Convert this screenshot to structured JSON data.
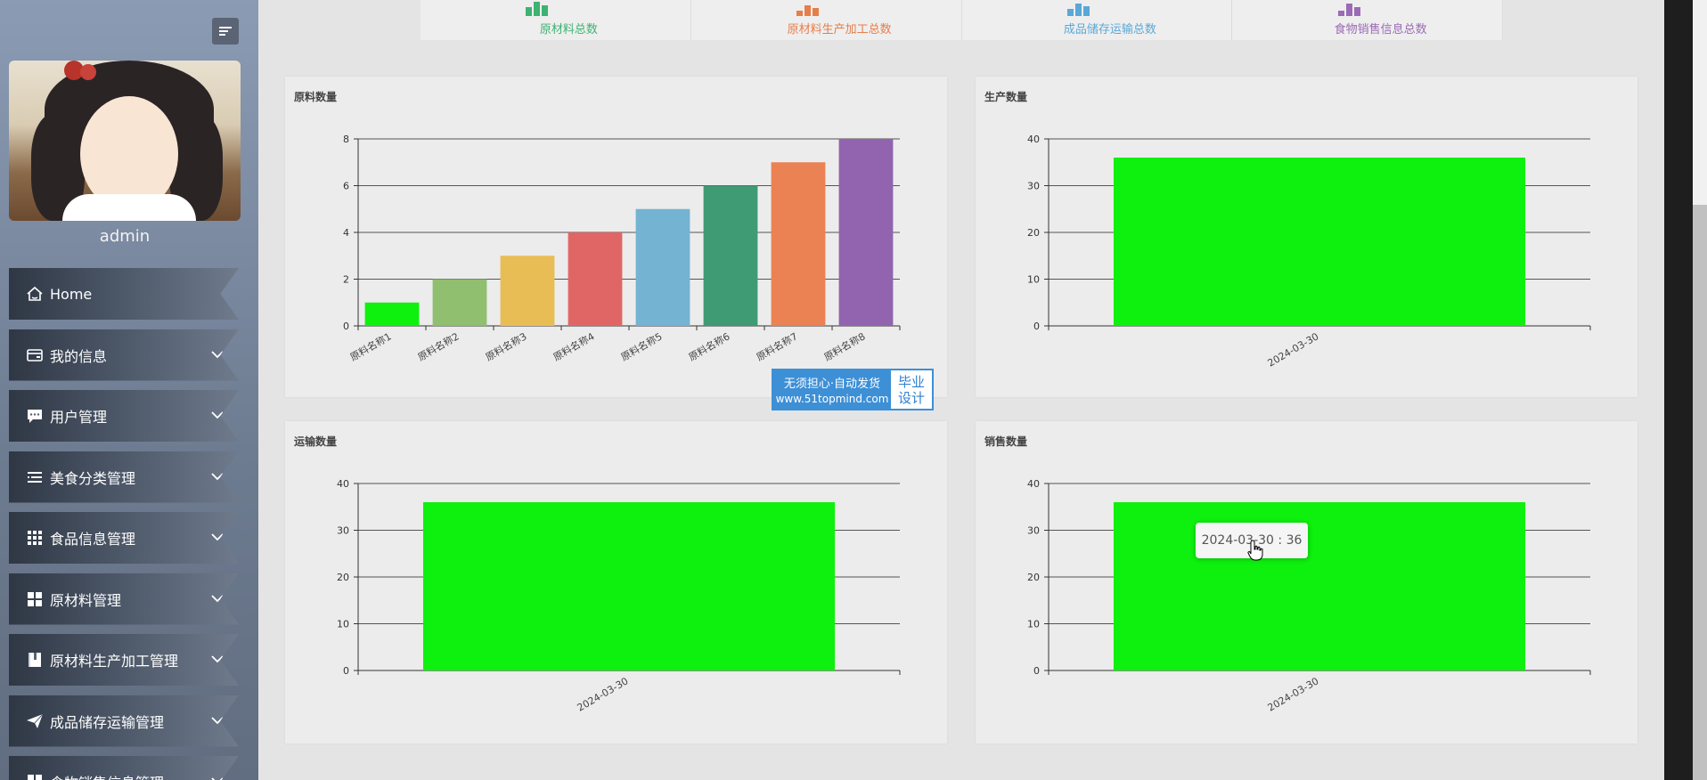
{
  "sidebar": {
    "username": "admin",
    "items": [
      {
        "label": "Home",
        "icon": "home-icon",
        "has_submenu": false
      },
      {
        "label": "我的信息",
        "icon": "card-icon",
        "has_submenu": true
      },
      {
        "label": "用户管理",
        "icon": "chat-icon",
        "has_submenu": true
      },
      {
        "label": "美食分类管理",
        "icon": "list-icon",
        "has_submenu": true
      },
      {
        "label": "食品信息管理",
        "icon": "grid-icon",
        "has_submenu": true
      },
      {
        "label": "原材料管理",
        "icon": "tiles-icon",
        "has_submenu": true
      },
      {
        "label": "原材料生产加工管理",
        "icon": "book-icon",
        "has_submenu": true
      },
      {
        "label": "成品储存运输管理",
        "icon": "send-icon",
        "has_submenu": true
      },
      {
        "label": "食物销售信息管理",
        "icon": "tiles-icon",
        "has_submenu": true
      }
    ]
  },
  "stats": [
    {
      "label": "原材料总数",
      "color": "#3cb371"
    },
    {
      "label": "原材料生产加工总数",
      "color": "#e67e4a"
    },
    {
      "label": "成品储存运输总数",
      "color": "#5aa8d6"
    },
    {
      "label": "食物销售信息总数",
      "color": "#9b6bb5"
    }
  ],
  "watermark": {
    "line1": "无须担心·自动发货",
    "line2": "www.51topmind.com",
    "right1": "毕业",
    "right2": "设计"
  },
  "tooltip": {
    "text": "2024-03-30 : 36"
  },
  "chart_data": [
    {
      "type": "bar",
      "title": "原料数量",
      "categories": [
        "原料名称1",
        "原料名称2",
        "原料名称3",
        "原料名称4",
        "原料名称5",
        "原料名称6",
        "原料名称7",
        "原料名称8"
      ],
      "values": [
        1,
        2,
        3,
        4,
        5,
        6,
        7,
        8
      ],
      "colors": [
        "#0ef00e",
        "#8fbf6f",
        "#e8bd55",
        "#e06666",
        "#74b3d1",
        "#3e9b74",
        "#eb8253",
        "#9263ae"
      ],
      "yticks": [
        0,
        2,
        4,
        6,
        8
      ],
      "ylim": [
        0,
        8
      ]
    },
    {
      "type": "bar",
      "title": "生产数量",
      "categories": [
        "2024-03-30"
      ],
      "values": [
        36
      ],
      "colors": [
        "#0ef00e"
      ],
      "yticks": [
        0,
        10,
        20,
        30,
        40
      ],
      "ylim": [
        0,
        40
      ]
    },
    {
      "type": "bar",
      "title": "运输数量",
      "categories": [
        "2024-03-30"
      ],
      "values": [
        36
      ],
      "colors": [
        "#0ef00e"
      ],
      "yticks": [
        0,
        10,
        20,
        30,
        40
      ],
      "ylim": [
        0,
        40
      ]
    },
    {
      "type": "bar",
      "title": "销售数量",
      "categories": [
        "2024-03-30"
      ],
      "values": [
        36
      ],
      "colors": [
        "#0ef00e"
      ],
      "yticks": [
        0,
        10,
        20,
        30,
        40
      ],
      "ylim": [
        0,
        40
      ]
    }
  ]
}
